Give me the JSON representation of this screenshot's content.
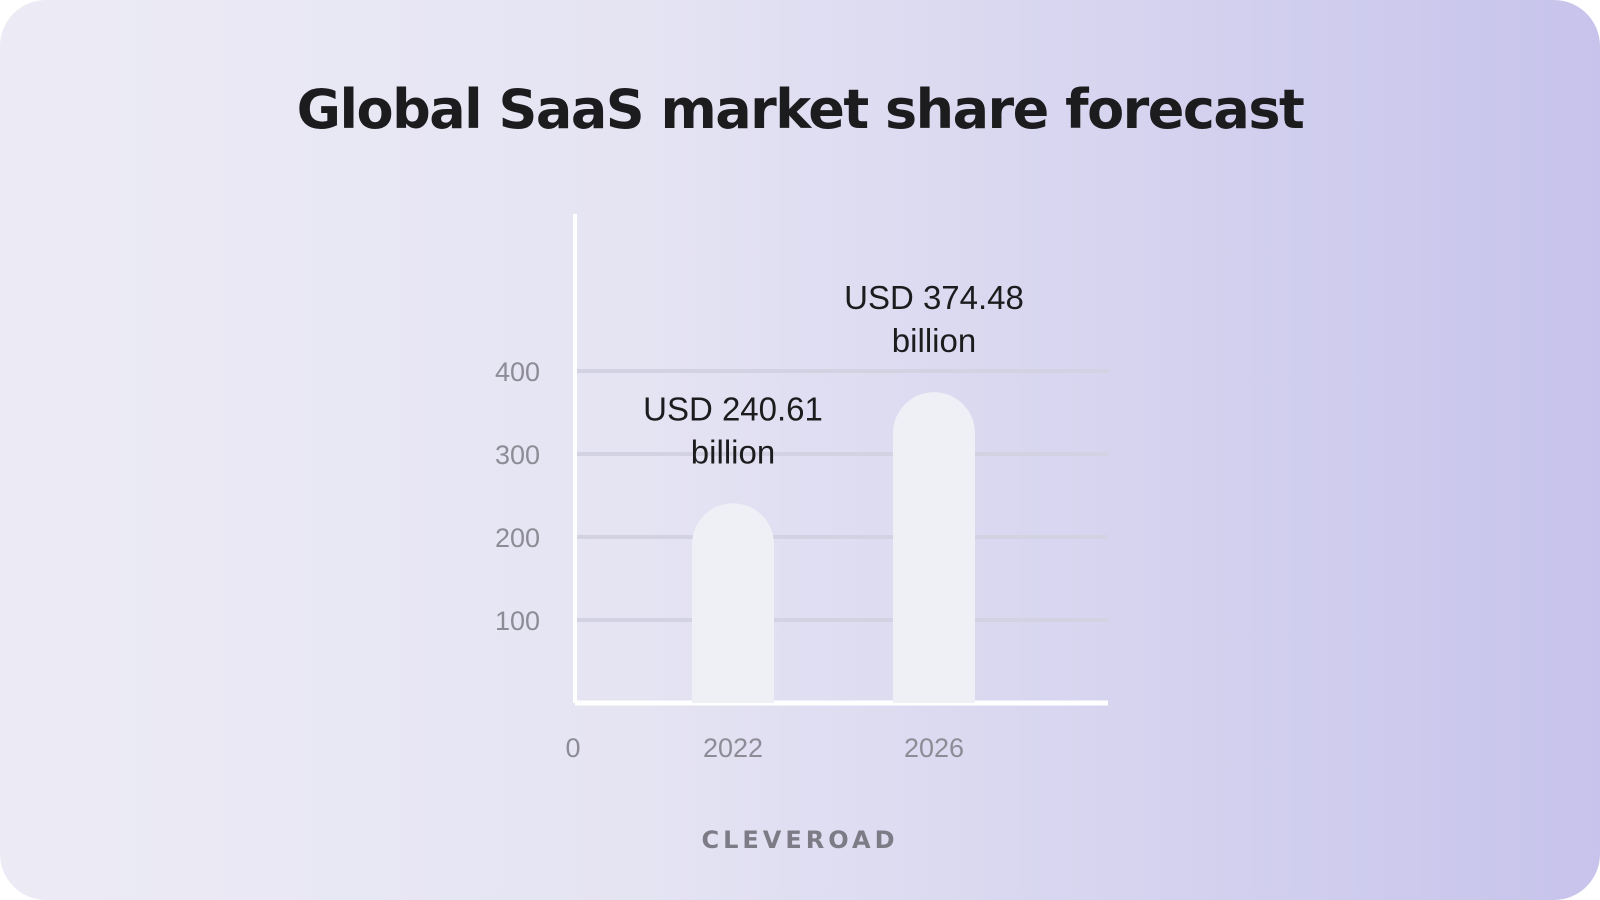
{
  "chart_data": {
    "type": "bar",
    "title": "Global SaaS market share forecast",
    "categories": [
      "2022",
      "2026"
    ],
    "values": [
      240.61,
      374.48
    ],
    "data_labels": [
      [
        "USD 240.61",
        "billion"
      ],
      [
        "USD 374.48",
        "billion"
      ]
    ],
    "ylim": [
      0,
      400
    ],
    "yticks": [
      100,
      200,
      300,
      400
    ],
    "origin_label": "0",
    "xlabel": "",
    "ylabel": "",
    "grid": true,
    "colors": {
      "bar": "#eef0f6",
      "grid": "#d3d2e2",
      "axis": "#ffffff"
    }
  },
  "brand": {
    "name": "CLEVEROAD"
  }
}
